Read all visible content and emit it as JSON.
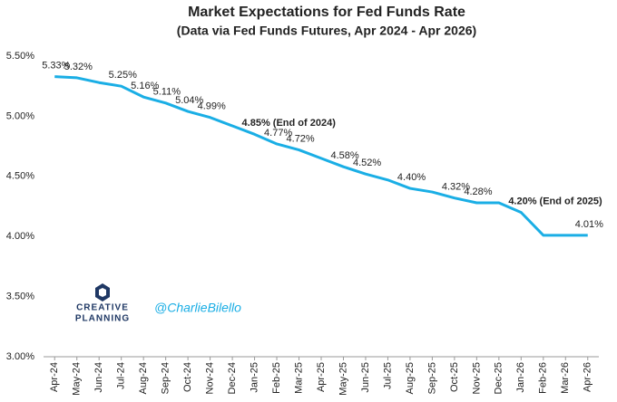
{
  "chart_data": {
    "type": "line",
    "title": "Market Expectations for Fed Funds Rate",
    "subtitle": "(Data via Fed Funds Futures, Apr 2024 - Apr 2026)",
    "categories": [
      "Apr-24",
      "May-24",
      "Jun-24",
      "Jul-24",
      "Aug-24",
      "Sep-24",
      "Oct-24",
      "Nov-24",
      "Dec-24",
      "Jan-25",
      "Feb-25",
      "Mar-25",
      "Apr-25",
      "May-25",
      "Jun-25",
      "Jul-25",
      "Aug-25",
      "Sep-25",
      "Oct-25",
      "Nov-25",
      "Dec-25",
      "Jan-26",
      "Feb-26",
      "Mar-26",
      "Apr-26"
    ],
    "series": [
      {
        "name": "Fed Funds Rate",
        "color": "#1aaee5",
        "values": [
          5.33,
          5.32,
          5.28,
          5.25,
          5.16,
          5.11,
          5.04,
          4.99,
          4.92,
          4.85,
          4.77,
          4.72,
          4.65,
          4.58,
          4.52,
          4.47,
          4.4,
          4.37,
          4.32,
          4.28,
          4.28,
          4.2,
          4.01,
          4.01,
          4.01
        ],
        "value_labels": [
          "5.33%",
          "5.32%",
          null,
          "5.25%",
          "5.16%",
          "5.11%",
          "5.04%",
          "4.99%",
          null,
          "4.85% (End of 2024)",
          "4.77%",
          "4.72%",
          null,
          "4.58%",
          "4.52%",
          null,
          "4.40%",
          null,
          "4.32%",
          "4.28%",
          null,
          "4.20% (End of 2025)",
          null,
          null,
          "4.01%"
        ]
      }
    ],
    "ylim": [
      3.0,
      5.5
    ],
    "yticks": [
      {
        "value": 3.0,
        "label": "3.00%"
      },
      {
        "value": 3.5,
        "label": "3.50%"
      },
      {
        "value": 4.0,
        "label": "4.00%"
      },
      {
        "value": 4.5,
        "label": "4.50%"
      },
      {
        "value": 5.0,
        "label": "5.00%"
      },
      {
        "value": 5.5,
        "label": "5.50%"
      }
    ],
    "grid": false,
    "annotations": [
      "CREATIVE",
      "PLANNING",
      "@CharlieBilello"
    ]
  }
}
